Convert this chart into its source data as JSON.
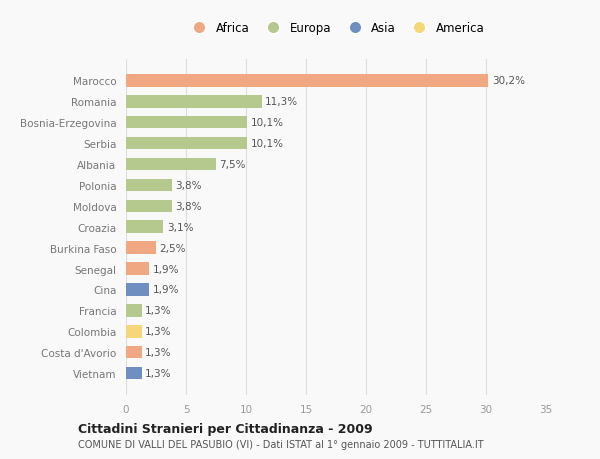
{
  "countries": [
    "Vietnam",
    "Costa d'Avorio",
    "Colombia",
    "Francia",
    "Cina",
    "Senegal",
    "Burkina Faso",
    "Croazia",
    "Moldova",
    "Polonia",
    "Albania",
    "Serbia",
    "Bosnia-Erzegovina",
    "Romania",
    "Marocco"
  ],
  "values": [
    1.3,
    1.3,
    1.3,
    1.3,
    1.9,
    1.9,
    2.5,
    3.1,
    3.8,
    3.8,
    7.5,
    10.1,
    10.1,
    11.3,
    30.2
  ],
  "labels": [
    "1,3%",
    "1,3%",
    "1,3%",
    "1,3%",
    "1,9%",
    "1,9%",
    "2,5%",
    "3,1%",
    "3,8%",
    "3,8%",
    "7,5%",
    "10,1%",
    "10,1%",
    "11,3%",
    "30,2%"
  ],
  "continents": [
    "Asia",
    "Africa",
    "America",
    "Europa",
    "Asia",
    "Africa",
    "Africa",
    "Europa",
    "Europa",
    "Europa",
    "Europa",
    "Europa",
    "Europa",
    "Europa",
    "Africa"
  ],
  "continent_colors": {
    "Africa": "#F0A882",
    "Europa": "#B5C98E",
    "Asia": "#6E8FBF",
    "America": "#F5D77A"
  },
  "legend_order": [
    "Africa",
    "Europa",
    "Asia",
    "America"
  ],
  "legend_colors": {
    "Africa": "#F0A882",
    "Europa": "#B5C98E",
    "Asia": "#6E8FBF",
    "America": "#F5D77A"
  },
  "xlim": [
    0,
    35
  ],
  "xticks": [
    0,
    5,
    10,
    15,
    20,
    25,
    30,
    35
  ],
  "title_main": "Cittadini Stranieri per Cittadinanza - 2009",
  "title_sub": "COMUNE DI VALLI DEL PASUBIO (VI) - Dati ISTAT al 1° gennaio 2009 - TUTTITALIA.IT",
  "background_color": "#F9F9F9",
  "grid_color": "#DDDDDD",
  "bar_height": 0.6,
  "label_fontsize": 7.5,
  "tick_fontsize": 7.5,
  "legend_fontsize": 8.5
}
